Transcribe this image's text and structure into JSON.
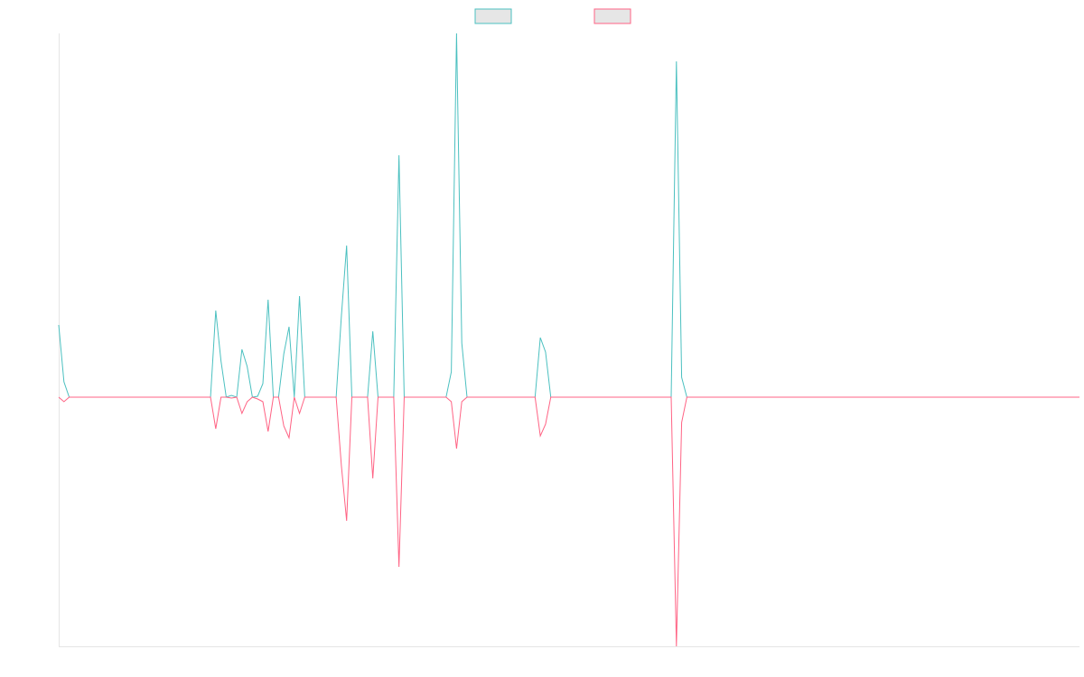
{
  "chart_data": {
    "type": "line",
    "x": [
      0,
      1,
      2,
      29,
      30,
      31,
      32,
      33,
      34,
      35,
      36,
      37,
      38,
      39,
      40,
      41,
      42,
      43,
      44,
      45,
      46,
      47,
      53,
      54,
      55,
      56,
      59,
      60,
      61,
      64,
      65,
      66,
      74,
      75,
      76,
      77,
      78,
      91,
      92,
      93,
      94,
      117,
      118,
      119,
      120,
      195
    ],
    "xlim": [
      0,
      195
    ],
    "ylim": [
      -276,
      403
    ],
    "series": [
      {
        "color": "#4bc0c0",
        "values": [
          80,
          17,
          0,
          0,
          96,
          40,
          0,
          2,
          0,
          53,
          34,
          0,
          1,
          15,
          108,
          0,
          0,
          48,
          78,
          0,
          112,
          0,
          0,
          90,
          168,
          0,
          0,
          73,
          0,
          0,
          268,
          0,
          0,
          28,
          403,
          60,
          0,
          0,
          66,
          50,
          0,
          0,
          372,
          22,
          0,
          0
        ]
      },
      {
        "color": "#ff6384",
        "values": [
          0,
          -5,
          0,
          0,
          -35,
          0,
          0,
          -1,
          0,
          -18,
          -5,
          0,
          -2,
          -5,
          -38,
          0,
          0,
          -32,
          -45,
          0,
          -18,
          0,
          0,
          -76,
          -137,
          0,
          0,
          -90,
          0,
          0,
          -188,
          0,
          0,
          -5,
          -57,
          -5,
          0,
          0,
          -43,
          -30,
          0,
          0,
          -276,
          -28,
          0,
          0
        ]
      }
    ]
  }
}
